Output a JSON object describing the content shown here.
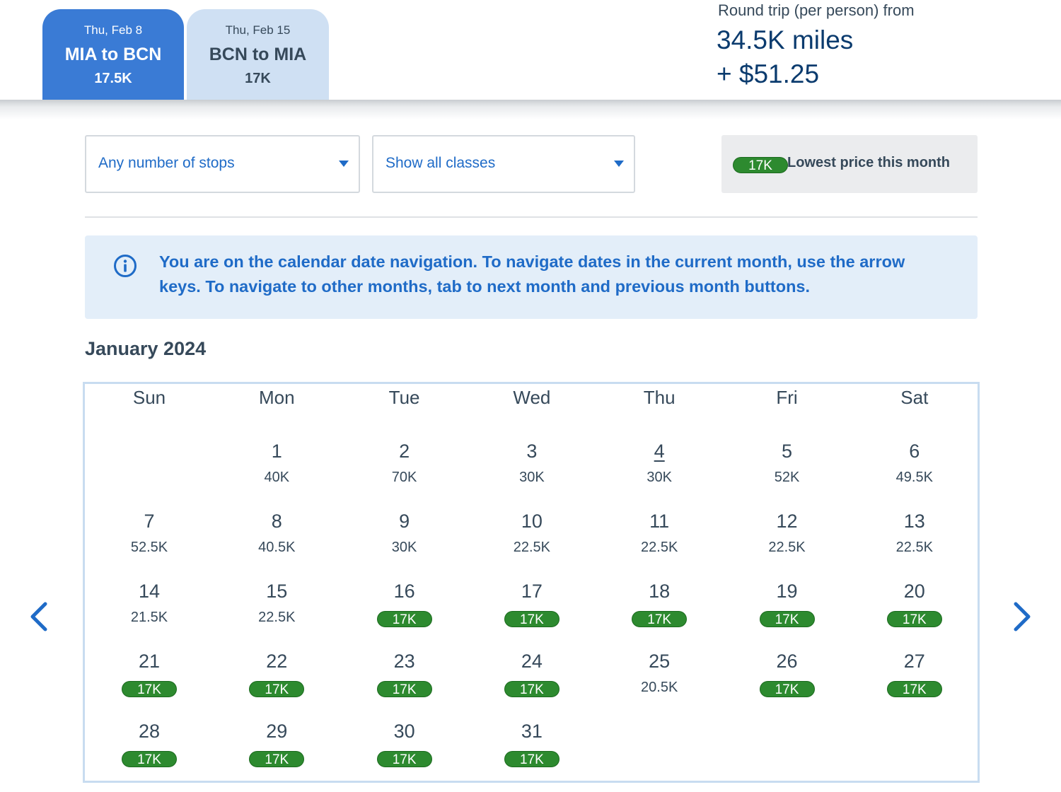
{
  "legs": [
    {
      "date": "Thu, Feb 8",
      "route": "MIA to BCN",
      "price": "17.5K"
    },
    {
      "date": "Thu, Feb 15",
      "route": "BCN to MIA",
      "price": "17K"
    }
  ],
  "round_trip": {
    "label": "Round trip (per person) from",
    "miles": "34.5K miles",
    "cash": "+ $51.25"
  },
  "filters": {
    "stops": "Any number of stops",
    "classes": "Show all classes"
  },
  "legend": {
    "badge": "17K",
    "text": "Lowest price this month"
  },
  "info": {
    "icon": "info-icon",
    "text": "You are on the calendar date navigation. To navigate dates in the current month, use the arrow keys. To navigate to other months, tab to next month and previous month buttons."
  },
  "calendar": {
    "month": "January 2024",
    "weekdays": [
      "Sun",
      "Mon",
      "Tue",
      "Wed",
      "Thu",
      "Fri",
      "Sat"
    ],
    "first_weekday": 1,
    "today": 4,
    "lowest_price": "17K",
    "days": [
      {
        "day": "1",
        "price": "40K"
      },
      {
        "day": "2",
        "price": "70K"
      },
      {
        "day": "3",
        "price": "30K"
      },
      {
        "day": "4",
        "price": "30K"
      },
      {
        "day": "5",
        "price": "52K"
      },
      {
        "day": "6",
        "price": "49.5K"
      },
      {
        "day": "7",
        "price": "52.5K"
      },
      {
        "day": "8",
        "price": "40.5K"
      },
      {
        "day": "9",
        "price": "30K"
      },
      {
        "day": "10",
        "price": "22.5K"
      },
      {
        "day": "11",
        "price": "22.5K"
      },
      {
        "day": "12",
        "price": "22.5K"
      },
      {
        "day": "13",
        "price": "22.5K"
      },
      {
        "day": "14",
        "price": "21.5K"
      },
      {
        "day": "15",
        "price": "22.5K"
      },
      {
        "day": "16",
        "price": "17K"
      },
      {
        "day": "17",
        "price": "17K"
      },
      {
        "day": "18",
        "price": "17K"
      },
      {
        "day": "19",
        "price": "17K"
      },
      {
        "day": "20",
        "price": "17K"
      },
      {
        "day": "21",
        "price": "17K"
      },
      {
        "day": "22",
        "price": "17K"
      },
      {
        "day": "23",
        "price": "17K"
      },
      {
        "day": "24",
        "price": "17K"
      },
      {
        "day": "25",
        "price": "20.5K"
      },
      {
        "day": "26",
        "price": "17K"
      },
      {
        "day": "27",
        "price": "17K"
      },
      {
        "day": "28",
        "price": "17K"
      },
      {
        "day": "29",
        "price": "17K"
      },
      {
        "day": "30",
        "price": "17K"
      },
      {
        "day": "31",
        "price": "17K"
      }
    ]
  },
  "nav": {
    "prev_icon": "chevron-left-icon",
    "next_icon": "chevron-right-icon"
  },
  "colors": {
    "active_tab": "#3a7bd5",
    "inactive_tab": "#cfe0f3",
    "link_blue": "#1f6bc7",
    "lowest_green": "#2d8a2f",
    "info_bg": "#e3eef9"
  }
}
